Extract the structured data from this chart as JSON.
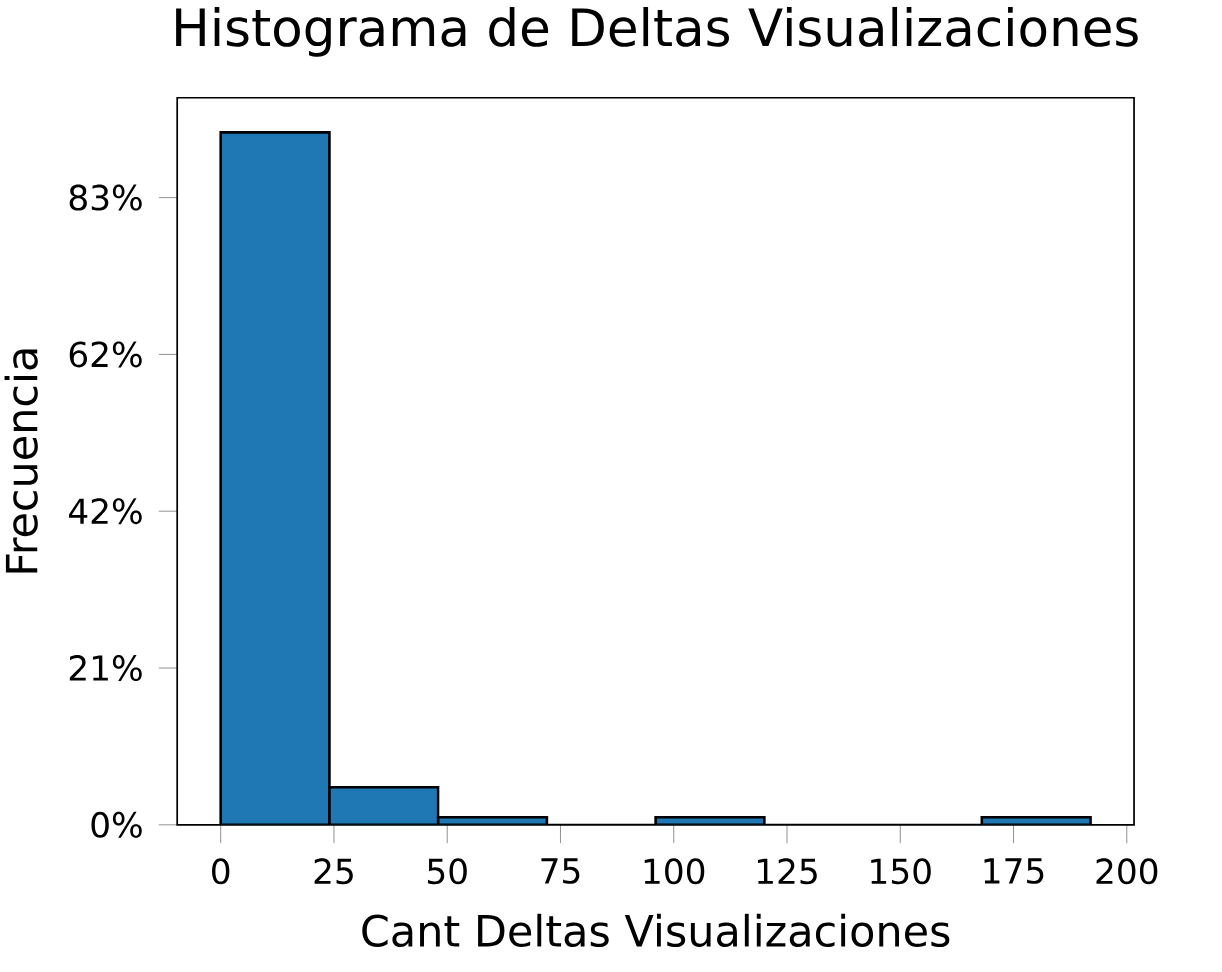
{
  "chart_data": {
    "type": "histogram",
    "title": "Histograma de Deltas Visualizaciones",
    "xlabel": "Cant Deltas Visualizaciones",
    "ylabel": "Frecuencia",
    "bins": [
      0,
      24,
      48,
      72,
      96,
      120,
      144,
      168,
      192
    ],
    "values": [
      92,
      5,
      1,
      0,
      1,
      0,
      0,
      1
    ],
    "color": "#1f77b4",
    "xlim": [
      -9.6,
      201.6
    ],
    "ylim": [
      0,
      96.6
    ],
    "xticks": [
      0,
      25,
      50,
      75,
      100,
      125,
      150,
      175,
      200
    ],
    "yticks": [
      {
        "value": 0,
        "label": "0%"
      },
      {
        "value": 20.83,
        "label": "21%"
      },
      {
        "value": 41.67,
        "label": "42%"
      },
      {
        "value": 62.5,
        "label": "62%"
      },
      {
        "value": 83.33,
        "label": "83%"
      }
    ]
  }
}
